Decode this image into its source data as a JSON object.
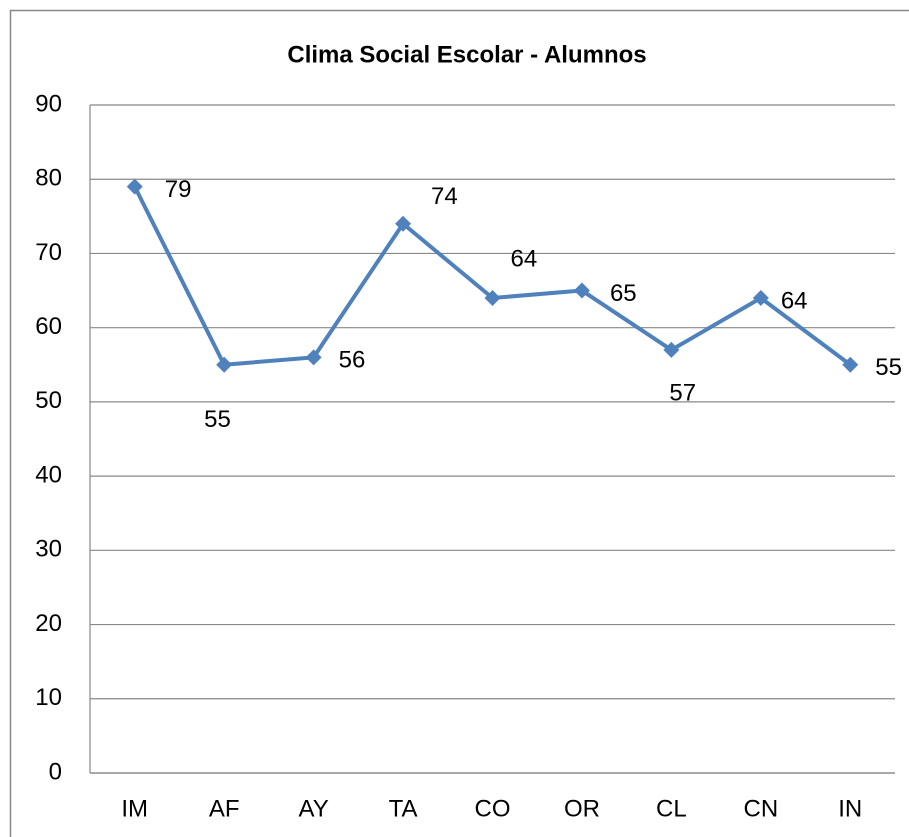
{
  "chart_data": {
    "type": "line",
    "title": "Clima Social Escolar - Alumnos",
    "categories": [
      "IM",
      "AF",
      "AY",
      "TA",
      "CO",
      "OR",
      "CL",
      "CN",
      "IN"
    ],
    "values": [
      79,
      55,
      56,
      74,
      64,
      65,
      57,
      64,
      55
    ],
    "color": "#4f81bd",
    "ylim": [
      0,
      90
    ],
    "yticks": [
      0,
      10,
      20,
      30,
      40,
      50,
      60,
      70,
      80,
      90
    ],
    "grid": true
  }
}
